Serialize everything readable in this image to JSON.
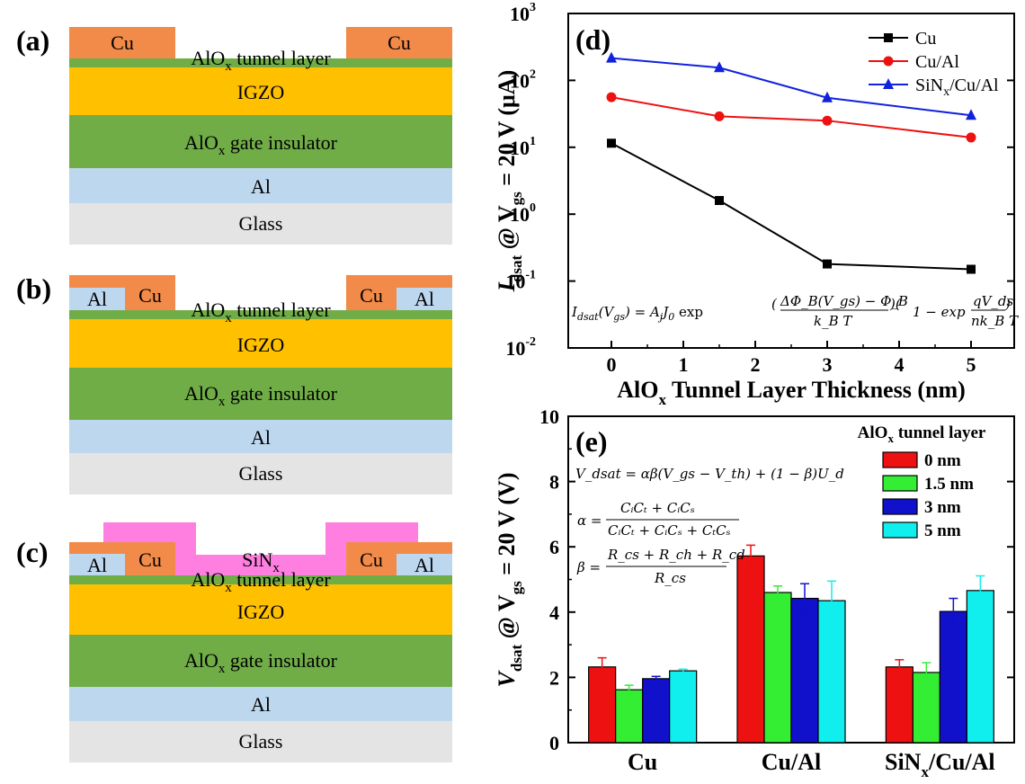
{
  "panels": {
    "a": {
      "label": "(a)",
      "cu_left": "Cu",
      "cu_right": "Cu",
      "tunnel_main": "AlO",
      "tunnel_sub": "x",
      "tunnel_rest": " tunnel layer",
      "igzo": "IGZO",
      "gate_main": "AlO",
      "gate_sub": "x",
      "gate_rest": " gate insulator",
      "al": "Al",
      "glass": "Glass"
    },
    "b": {
      "label": "(b)",
      "al_left": "Al",
      "cu_left": "Cu",
      "cu_right": "Cu",
      "al_right": "Al",
      "tunnel_main": "AlO",
      "tunnel_sub": "x",
      "tunnel_rest": " tunnel layer",
      "igzo": "IGZO",
      "gate_main": "AlO",
      "gate_sub": "x",
      "gate_rest": " gate insulator",
      "al": "Al",
      "glass": "Glass"
    },
    "c": {
      "label": "(c)",
      "al_left": "Al",
      "cu_left": "Cu",
      "cu_right": "Cu",
      "al_right": "Al",
      "sin_main": "SiN",
      "sin_sub": "x",
      "tunnel_main": "AlO",
      "tunnel_sub": "x",
      "tunnel_rest": " tunnel layer",
      "igzo": "IGZO",
      "gate_main": "AlO",
      "gate_sub": "x",
      "gate_rest": " gate insulator",
      "al": "Al",
      "glass": "Glass"
    }
  },
  "layer_colors": {
    "cu": "#f28b4a",
    "al_contact": "#bdd7ee",
    "tunnel": "#70ad47",
    "igzo": "#ffc000",
    "gate": "#70ad47",
    "al_gate": "#bdd7ee",
    "glass": "#e4e4e4",
    "sin": "#ff7fe0"
  },
  "chart_data": [
    {
      "panel": "(d)",
      "type": "line",
      "yscale": "log",
      "ylim": [
        0.01,
        1000
      ],
      "xlim": [
        -0.6,
        5.6
      ],
      "xticks": [
        0,
        1,
        2,
        3,
        4,
        5
      ],
      "yticks": [
        0.01,
        0.1,
        1,
        10,
        100,
        1000
      ],
      "yticklabels": [
        {
          "base": "10",
          "exp": "-2"
        },
        {
          "base": "10",
          "exp": "-1"
        },
        {
          "base": "10",
          "exp": "0"
        },
        {
          "base": "10",
          "exp": "1"
        },
        {
          "base": "10",
          "exp": "2"
        },
        {
          "base": "10",
          "exp": "3"
        }
      ],
      "xlabel": {
        "main": "AlO",
        "sub": "x",
        "rest": " Tunnel Layer Thickness (nm)"
      },
      "ylabel": {
        "i": "I",
        "i_sub": "dsat",
        "mid": " @ V",
        "v_sub": "gs",
        "rest": " = 20 V (μA)"
      },
      "x": [
        0,
        1.5,
        3,
        5
      ],
      "series": [
        {
          "name": "Cu",
          "color": "#000000",
          "marker": "square",
          "values": [
            11.5,
            1.6,
            0.18,
            0.15
          ]
        },
        {
          "name": "Cu/Al",
          "color": "#ee1111",
          "marker": "circle",
          "values": [
            56,
            29,
            25,
            14
          ]
        },
        {
          "name_main": "SiN",
          "name_sub": "x",
          "name_rest": "/Cu/Al",
          "color": "#1122dd",
          "marker": "triangle",
          "values": [
            215,
            155,
            55,
            30
          ]
        }
      ],
      "legend_position": "top-right",
      "equation": "I_dsat(V_gs) = A_j J_0 exp((ΔΦ_B(V_gs) − Φ_B)/(k_B T)) (1 − exp(−qV_ds/(n k_B T)))"
    },
    {
      "panel": "(e)",
      "type": "bar",
      "ylim": [
        0,
        10
      ],
      "yticks": [
        0,
        2,
        4,
        6,
        8,
        10
      ],
      "categories": [
        {
          "main": "Cu",
          "sub": "",
          "rest": ""
        },
        {
          "main": "Cu/Al",
          "sub": "",
          "rest": ""
        },
        {
          "main": "SiN",
          "sub": "x",
          "rest": "/Cu/Al"
        }
      ],
      "ylabel": {
        "v": "V",
        "v_sub": "dsat",
        "mid": " @ V",
        "g_sub": "gs",
        "rest": " = 20 V (V)"
      },
      "legend_title": {
        "main": "AlO",
        "sub": "x",
        "rest": " tunnel layer"
      },
      "legend_position": "top-right",
      "series": [
        {
          "name": "0 nm",
          "color": "#ee1111",
          "values": [
            2.32,
            5.72,
            2.32
          ],
          "errors": [
            0.28,
            0.33,
            0.22
          ]
        },
        {
          "name": "1.5 nm",
          "color": "#33ee33",
          "values": [
            1.62,
            4.6,
            2.15
          ],
          "errors": [
            0.14,
            0.2,
            0.3
          ]
        },
        {
          "name": "3 nm",
          "color": "#1111cc",
          "values": [
            1.96,
            4.42,
            4.02
          ],
          "errors": [
            0.07,
            0.45,
            0.4
          ]
        },
        {
          "name": "5 nm",
          "color": "#11eeee",
          "values": [
            2.2,
            4.35,
            4.66
          ],
          "errors": [
            0.05,
            0.6,
            0.45
          ]
        }
      ],
      "equations": {
        "vdsat": "V_dsat = αβ(V_gs − V_th) + (1 − β)U_d",
        "alpha_lhs": "α =",
        "alpha_num": "CᵢCₜ + CᵢCₛ",
        "alpha_den": "CᵢCₜ + CᵢCₛ + CₜCₛ",
        "beta_lhs": "β =",
        "beta_num": "R_cs + R_ch + R_cd",
        "beta_den": "R_cs"
      }
    }
  ],
  "eq_text": {
    "d_lhs": "I",
    "d_lhs_sub": "dsat",
    "d_arg": "(V",
    "d_arg_sub": "gs",
    "d_arg_end": ") = ",
    "d_rhs": "A",
    "d_rhs_sub1": "j",
    "d_rhs2": "J",
    "d_rhs_sub2": "0",
    "d_rhs3": " exp",
    "d_frac_num": "ΔΦ_B(V_gs) − Φ_B",
    "d_frac_den": "k_B T",
    "d_paren": "1 − exp",
    "d_frac2_num": "qV_ds",
    "d_frac2_den": "nk_B T"
  }
}
